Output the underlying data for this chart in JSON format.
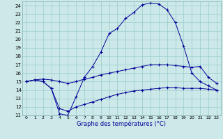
{
  "xlabel": "Graphe des températures (°C)",
  "xlim": [
    -0.5,
    23.5
  ],
  "ylim": [
    11,
    24.5
  ],
  "xticks": [
    0,
    1,
    2,
    3,
    4,
    5,
    6,
    7,
    8,
    9,
    10,
    11,
    12,
    13,
    14,
    15,
    16,
    17,
    18,
    19,
    20,
    21,
    22,
    23
  ],
  "yticks": [
    11,
    12,
    13,
    14,
    15,
    16,
    17,
    18,
    19,
    20,
    21,
    22,
    23,
    24
  ],
  "bg_color": "#cce8e8",
  "grid_color": "#99cccc",
  "line_color": "#000099",
  "line1_x": [
    0,
    1,
    2,
    3,
    4,
    5,
    6,
    7,
    8,
    9,
    10,
    11,
    12,
    13,
    14,
    15,
    16,
    17,
    18,
    19,
    20,
    21,
    22,
    23
  ],
  "line1_y": [
    15.0,
    15.2,
    15.0,
    14.2,
    11.2,
    11.0,
    13.2,
    15.5,
    16.8,
    18.5,
    20.7,
    21.3,
    22.5,
    23.2,
    24.1,
    24.3,
    24.2,
    23.5,
    22.0,
    19.2,
    16.0,
    15.0,
    14.5,
    14.0
  ],
  "line2_x": [
    0,
    1,
    2,
    3,
    4,
    5,
    6,
    7,
    8,
    9,
    10,
    11,
    12,
    13,
    14,
    15,
    16,
    17,
    18,
    19,
    20,
    21,
    22,
    23
  ],
  "line2_y": [
    15.0,
    15.2,
    15.3,
    15.2,
    15.0,
    14.8,
    15.0,
    15.3,
    15.5,
    15.8,
    16.0,
    16.2,
    16.4,
    16.6,
    16.8,
    17.0,
    17.0,
    17.0,
    16.9,
    16.8,
    16.7,
    16.8,
    15.5,
    14.8
  ],
  "line3_x": [
    0,
    1,
    2,
    3,
    4,
    5,
    6,
    7,
    8,
    9,
    10,
    11,
    12,
    13,
    14,
    15,
    16,
    17,
    18,
    19,
    20,
    21,
    22,
    23
  ],
  "line3_y": [
    15.0,
    15.2,
    15.0,
    14.2,
    11.8,
    11.5,
    12.0,
    12.3,
    12.6,
    12.9,
    13.2,
    13.5,
    13.7,
    13.9,
    14.0,
    14.1,
    14.2,
    14.3,
    14.3,
    14.2,
    14.2,
    14.2,
    14.1,
    14.0
  ]
}
